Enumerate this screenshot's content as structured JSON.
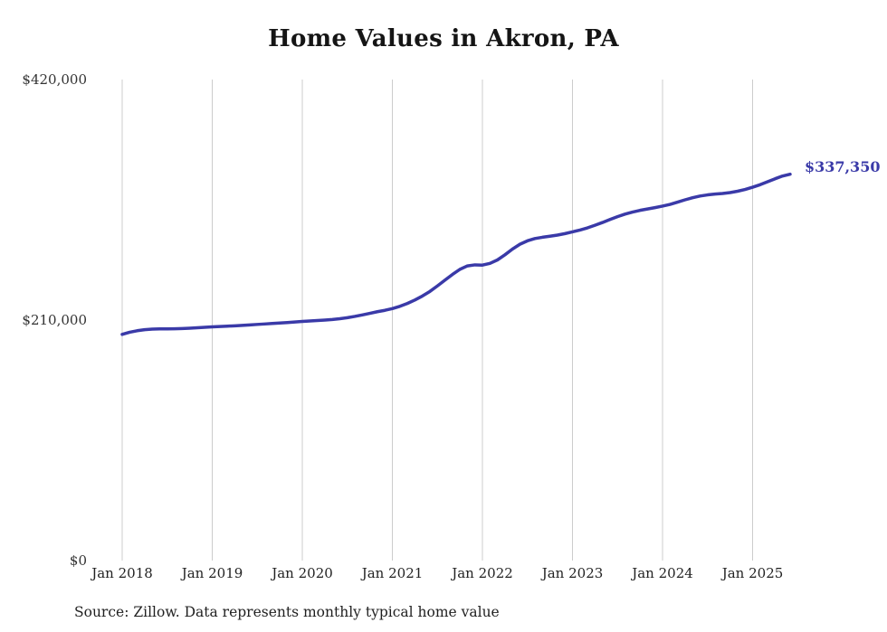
{
  "page": {
    "background_color": "#ffffff"
  },
  "chart_data": {
    "type": "line",
    "title": "Home Values in Akron, PA",
    "xlabel": "",
    "ylabel": "",
    "ylim": [
      0,
      420000
    ],
    "y_tick_values": [
      0,
      210000,
      420000
    ],
    "y_tick_labels": [
      "$0",
      "$210,000",
      "$420,000"
    ],
    "x_tick_labels": [
      "Jan 2018",
      "Jan 2019",
      "Jan 2020",
      "Jan 2021",
      "Jan 2022",
      "Jan 2023",
      "Jan 2024",
      "Jan 2025"
    ],
    "x_range": {
      "start": "Jan 2018",
      "end": "Jun 2025"
    },
    "gridlines": "vertical at each January tick",
    "legend_position": "none",
    "line_color": "#3a3aa8",
    "gridline_color": "#cccccc",
    "end_label": "$337,350",
    "end_value": 337350,
    "series": [
      {
        "name": "Typical home value",
        "start_month": "2018-01",
        "frequency": "monthly",
        "values": [
          197500,
          199400,
          200700,
          201600,
          202100,
          202300,
          202300,
          202400,
          202600,
          202900,
          203300,
          203700,
          204100,
          204400,
          204700,
          205000,
          205400,
          205800,
          206200,
          206600,
          207000,
          207400,
          207800,
          208300,
          208800,
          209200,
          209600,
          210000,
          210500,
          211200,
          212100,
          213200,
          214500,
          215900,
          217300,
          218500,
          220000,
          222000,
          224500,
          227500,
          231000,
          235000,
          239800,
          244800,
          249800,
          254300,
          257300,
          258200,
          258000,
          259500,
          262500,
          267000,
          272000,
          276200,
          279200,
          281200,
          282300,
          283200,
          284200,
          285500,
          287000,
          288600,
          290500,
          292800,
          295200,
          297800,
          300300,
          302500,
          304300,
          305800,
          307000,
          308200,
          309500,
          311000,
          313000,
          315000,
          316800,
          318300,
          319300,
          320000,
          320500,
          321300,
          322500,
          324000,
          326000,
          328200,
          330800,
          333400,
          335800,
          337350
        ]
      }
    ],
    "source_note": "Source: Zillow. Data represents monthly typical home value"
  }
}
